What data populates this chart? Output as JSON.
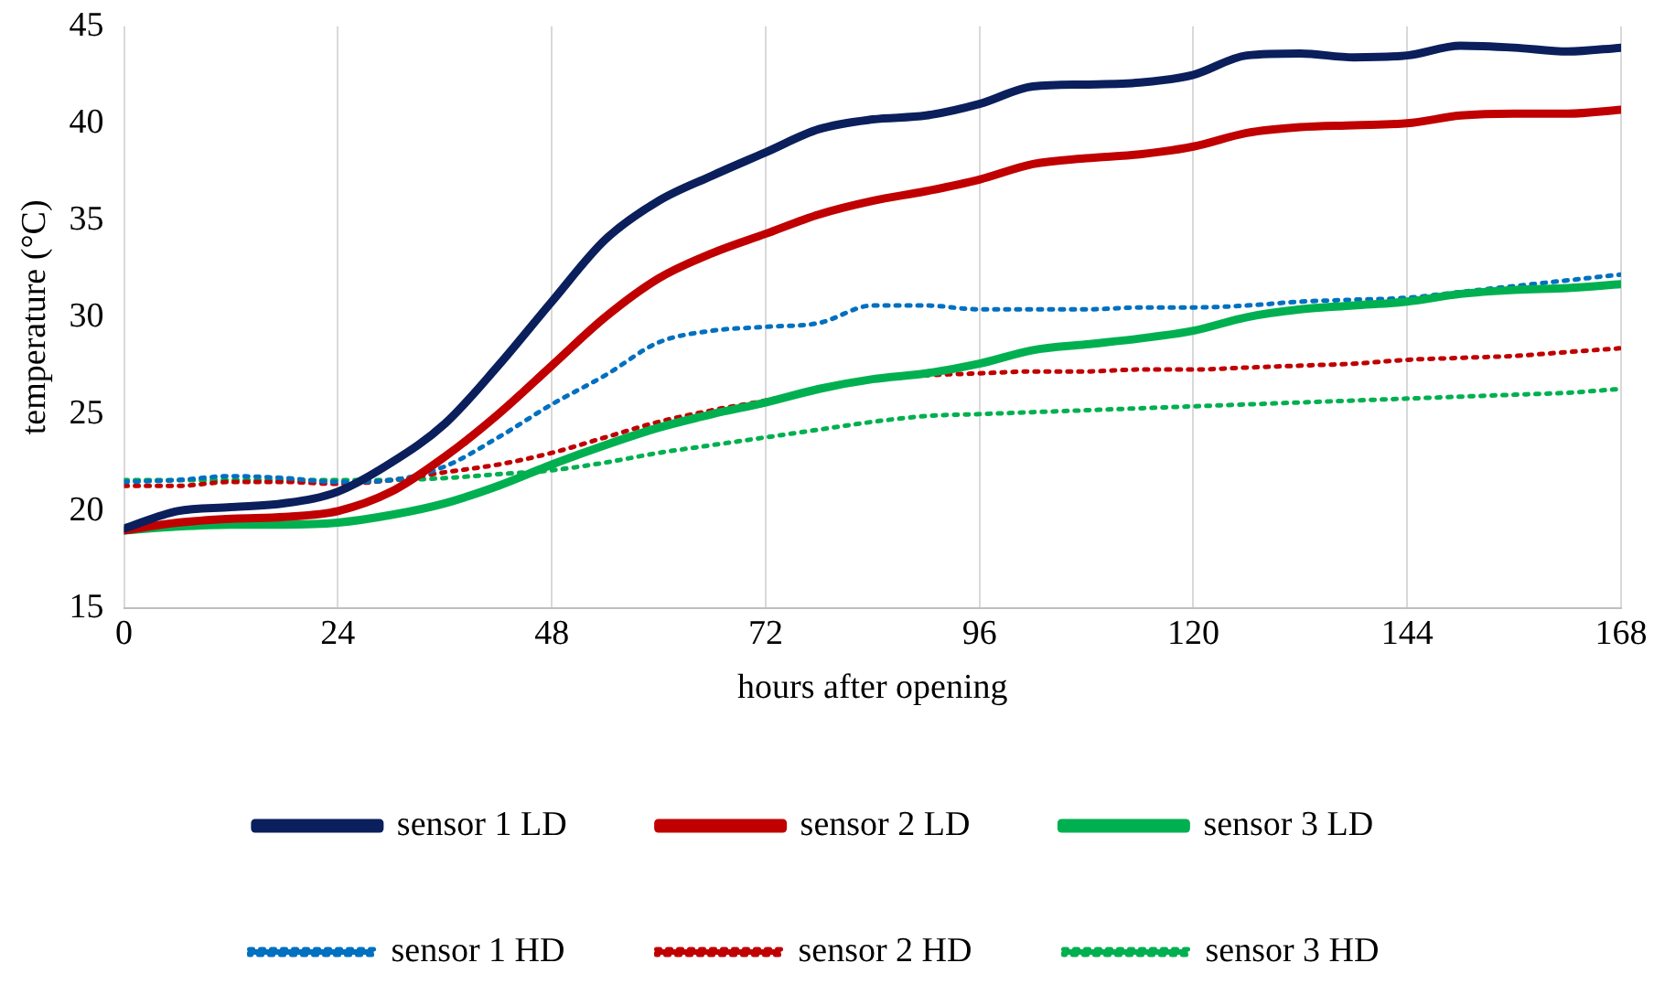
{
  "chart_data": {
    "type": "line",
    "xlabel": "hours after opening",
    "ylabel": "temperature (°C)",
    "x": [
      0,
      6,
      12,
      18,
      24,
      30,
      36,
      42,
      48,
      54,
      60,
      66,
      72,
      78,
      84,
      90,
      96,
      102,
      108,
      114,
      120,
      126,
      132,
      138,
      144,
      150,
      156,
      162,
      168
    ],
    "xlim": [
      0,
      168
    ],
    "xticks": [
      0,
      24,
      48,
      72,
      96,
      120,
      144,
      168
    ],
    "ylim": [
      15,
      45
    ],
    "yticks": [
      15,
      20,
      25,
      30,
      35,
      40,
      45
    ],
    "grid": "x",
    "legend": "bottom",
    "marker": "none",
    "series": [
      {
        "name": "sensor 1 LD",
        "color": "#0a1f5c",
        "line_style": "solid",
        "values": [
          19.1,
          20.0,
          20.2,
          20.4,
          21.0,
          22.5,
          24.5,
          27.5,
          30.8,
          34.0,
          36.0,
          37.3,
          38.5,
          39.7,
          40.2,
          40.4,
          41.0,
          41.9,
          42.0,
          42.1,
          42.5,
          43.5,
          43.6,
          43.4,
          43.5,
          44.0,
          43.9,
          43.7,
          43.9
        ]
      },
      {
        "name": "sensor 2 LD",
        "color": "#c00000",
        "line_style": "solid",
        "values": [
          19.0,
          19.4,
          19.6,
          19.7,
          20.0,
          21.0,
          22.8,
          25.0,
          27.5,
          30.0,
          32.0,
          33.3,
          34.3,
          35.3,
          36.0,
          36.5,
          37.1,
          37.9,
          38.2,
          38.4,
          38.8,
          39.5,
          39.8,
          39.9,
          40.0,
          40.4,
          40.5,
          40.5,
          40.7
        ]
      },
      {
        "name": "sensor 3 LD",
        "color": "#00b050",
        "line_style": "solid",
        "values": [
          19.0,
          19.2,
          19.3,
          19.3,
          19.4,
          19.8,
          20.4,
          21.3,
          22.4,
          23.4,
          24.3,
          25.0,
          25.6,
          26.3,
          26.8,
          27.1,
          27.6,
          28.3,
          28.6,
          28.9,
          29.3,
          30.0,
          30.4,
          30.6,
          30.8,
          31.2,
          31.4,
          31.5,
          31.7
        ]
      },
      {
        "name": "sensor 1 HD",
        "color": "#0070c0",
        "line_style": "dotted",
        "values": [
          21.5,
          21.6,
          21.8,
          21.7,
          21.5,
          21.6,
          22.3,
          23.8,
          25.5,
          27.0,
          28.7,
          29.3,
          29.5,
          29.7,
          30.6,
          30.6,
          30.4,
          30.4,
          30.4,
          30.5,
          30.5,
          30.6,
          30.8,
          30.9,
          31.0,
          31.3,
          31.6,
          31.9,
          32.2
        ]
      },
      {
        "name": "sensor 2 HD",
        "color": "#c00000",
        "line_style": "dotted",
        "values": [
          21.3,
          21.3,
          21.5,
          21.5,
          21.4,
          21.6,
          22.0,
          22.4,
          23.0,
          23.8,
          24.6,
          25.2,
          25.7,
          26.3,
          26.8,
          27.0,
          27.1,
          27.2,
          27.2,
          27.3,
          27.3,
          27.4,
          27.5,
          27.6,
          27.8,
          27.9,
          28.0,
          28.2,
          28.4
        ]
      },
      {
        "name": "sensor 3 HD",
        "color": "#00b050",
        "line_style": "dotted",
        "values": [
          21.6,
          21.6,
          21.6,
          21.6,
          21.6,
          21.6,
          21.7,
          21.9,
          22.1,
          22.5,
          23.0,
          23.4,
          23.8,
          24.2,
          24.6,
          24.9,
          25.0,
          25.1,
          25.2,
          25.3,
          25.4,
          25.5,
          25.6,
          25.7,
          25.8,
          25.9,
          26.0,
          26.1,
          26.3
        ]
      }
    ]
  }
}
